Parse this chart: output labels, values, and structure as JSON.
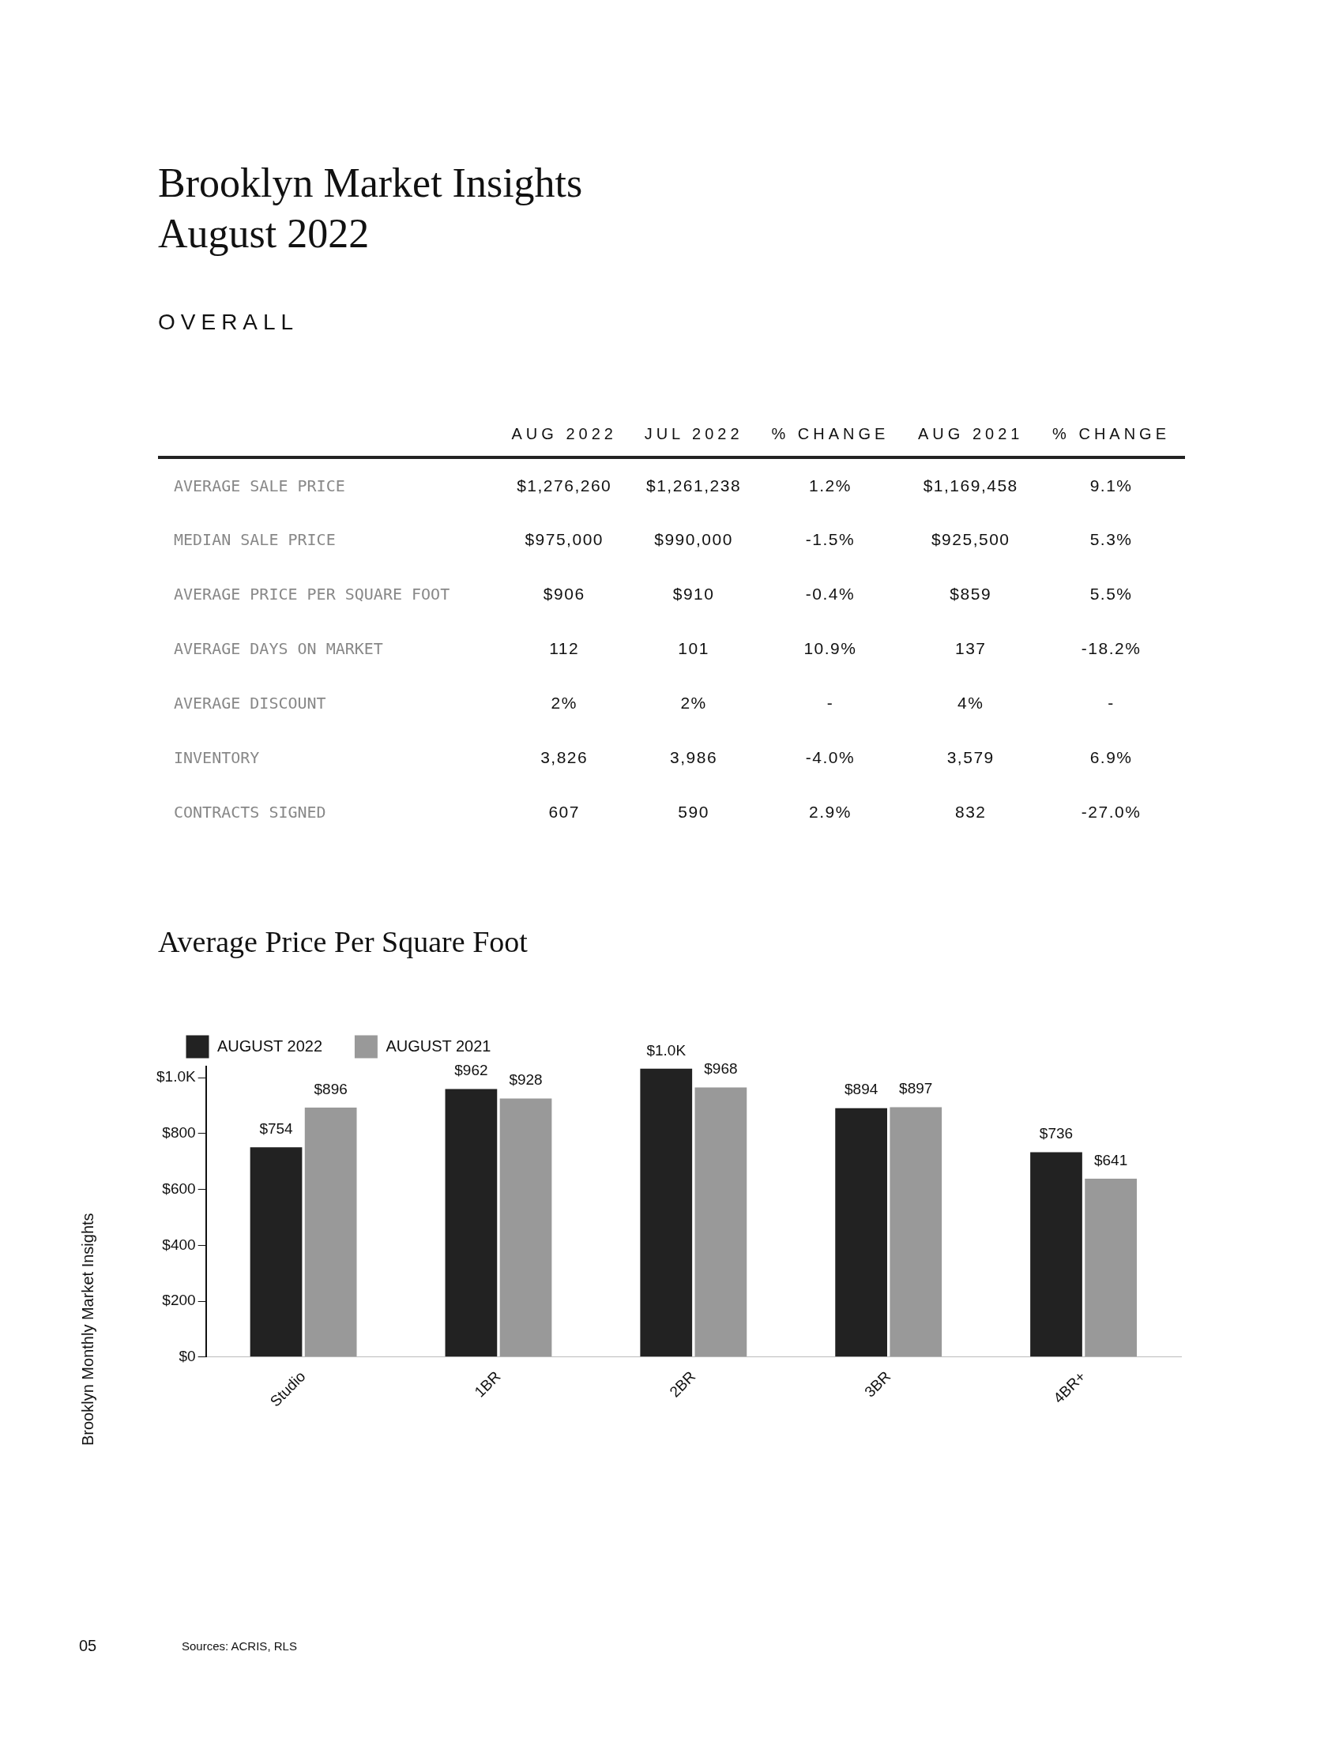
{
  "chart_data": [
    {
      "type": "other",
      "title": "Brooklyn Market Insights\nAugust 2022",
      "subtitle": "OVERALL",
      "categories": [
        "AUG 2022",
        "JUL 2022",
        "% CHANGE",
        "AUG 2021",
        "% CHANGE"
      ],
      "y_categories": [
        "AVERAGE SALE PRICE",
        "MEDIAN SALE PRICE",
        "AVERAGE PRICE PER SQUARE FOOT",
        "AVERAGE DAYS ON MARKET",
        "AVERAGE DISCOUNT",
        "INVENTORY",
        "CONTRACTS SIGNED"
      ],
      "cell_labels": [
        [
          "$1,276,260",
          "$1,261,238",
          "1.2%",
          "$1,169,458",
          "9.1%"
        ],
        [
          "$975,000",
          "$990,000",
          "-1.5%",
          "$925,500",
          "5.3%"
        ],
        [
          "$906",
          "$910",
          "-0.4%",
          "$859",
          "5.5%"
        ],
        [
          "112",
          "101",
          "10.9%",
          "137",
          "-18.2%"
        ],
        [
          "2%",
          "2%",
          "-",
          "4%",
          "-"
        ],
        [
          "3,826",
          "3,986",
          "-4.0%",
          "3,579",
          "6.9%"
        ],
        [
          "607",
          "590",
          "2.9%",
          "832",
          "-27.0%"
        ]
      ]
    },
    {
      "type": "bar",
      "title": "Average Price Per Square Foot",
      "categories": [
        "Studio",
        "1BR",
        "2BR",
        "3BR",
        "4BR+"
      ],
      "series": [
        {
          "name": "AUGUST 2022",
          "color": "#222222",
          "values": [
            754,
            962,
            1035,
            894,
            736
          ],
          "value_labels": [
            "$754",
            "$962",
            "$1.0K",
            "$894",
            "$736"
          ]
        },
        {
          "name": "AUGUST 2021",
          "color": "#999999",
          "values": [
            896,
            928,
            968,
            897,
            641
          ],
          "value_labels": [
            "$896",
            "$928",
            "$968",
            "$897",
            "$641"
          ]
        }
      ],
      "ylim": [
        0,
        1040
      ],
      "yticks": [
        {
          "value": 0,
          "label": "$0"
        },
        {
          "value": 200,
          "label": "$200"
        },
        {
          "value": 400,
          "label": "$400"
        },
        {
          "value": 600,
          "label": "$600"
        },
        {
          "value": 800,
          "label": "$800"
        },
        {
          "value": 1000,
          "label": "$1.0K"
        }
      ],
      "grid": false,
      "legend": "top left",
      "annotations": [
        "Sources: ACRIS, RLS",
        "Brooklyn Monthly Market Insights",
        "05"
      ]
    }
  ]
}
